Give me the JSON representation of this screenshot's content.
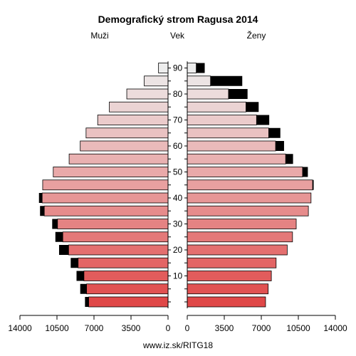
{
  "chart_data": {
    "type": "bar",
    "title": "Demografický strom Ragusa 2014",
    "left_label": "Muži",
    "center_label": "Vek",
    "right_label": "Ženy",
    "footer": "www.iz.sk/RITG18",
    "xlim": [
      0,
      14000
    ],
    "x_ticks": [
      14000,
      10500,
      7000,
      3500,
      0
    ],
    "x_tick_labels": [
      "14000",
      "10500",
      "7000",
      "3500",
      "0"
    ],
    "y_ticks": [
      90,
      80,
      70,
      60,
      50,
      40,
      30,
      20,
      10
    ],
    "age_groups": [
      "0-4",
      "5-9",
      "10-14",
      "15-19",
      "20-24",
      "25-29",
      "30-34",
      "35-39",
      "40-44",
      "45-49",
      "50-54",
      "55-59",
      "60-64",
      "65-69",
      "70-74",
      "75-79",
      "80-84",
      "85-89",
      "90+"
    ],
    "series": [
      {
        "name": "Muži",
        "values": [
          7500,
          7700,
          7950,
          8500,
          9400,
          9950,
          10450,
          11700,
          11900,
          11850,
          10850,
          9350,
          8300,
          7750,
          6650,
          5550,
          3900,
          2250,
          900
        ],
        "extra": [
          350,
          600,
          700,
          700,
          900,
          700,
          500,
          400,
          300,
          0,
          0,
          0,
          0,
          0,
          0,
          0,
          0,
          0,
          0
        ]
      },
      {
        "name": "Ženy",
        "values": [
          7400,
          7650,
          7950,
          8400,
          9450,
          9950,
          10300,
          11450,
          11700,
          11850,
          10900,
          9300,
          8350,
          7700,
          6550,
          5550,
          3900,
          2200,
          850
        ],
        "extra": [
          0,
          0,
          0,
          0,
          0,
          0,
          0,
          0,
          0,
          100,
          500,
          700,
          800,
          1100,
          1200,
          1200,
          1800,
          3000,
          800
        ]
      }
    ],
    "colors": {
      "bottom": "#e04848",
      "middle": "#e8a0a0",
      "top": "#ededed",
      "extra": "#000000"
    }
  }
}
